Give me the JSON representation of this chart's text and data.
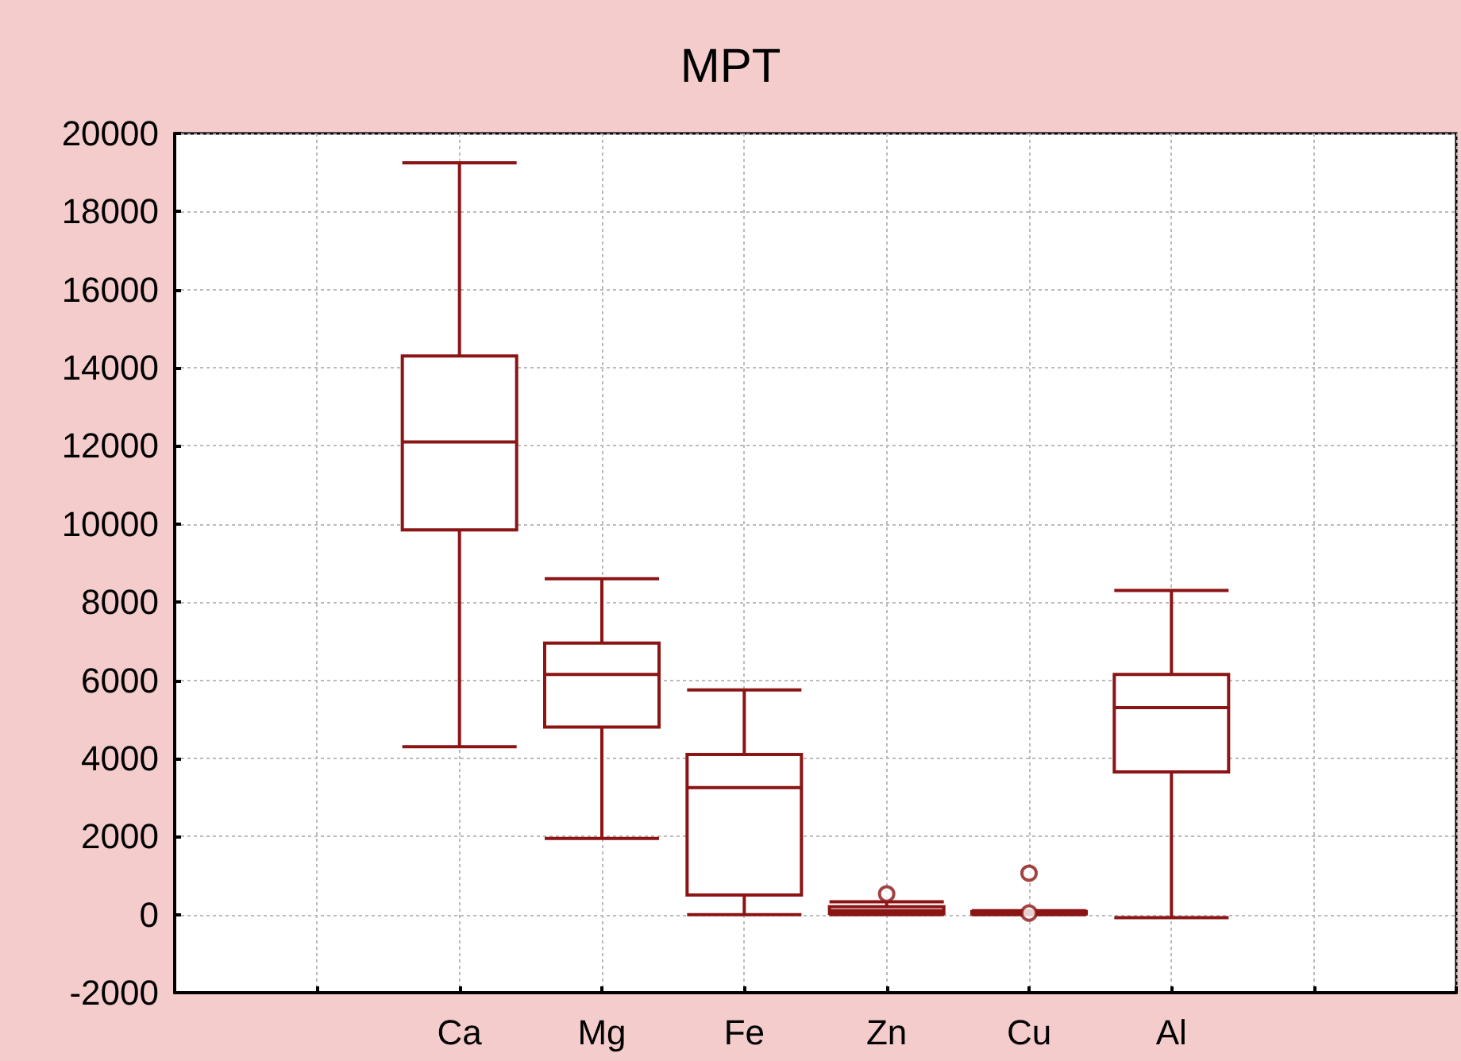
{
  "chart_data": {
    "type": "box",
    "title": "MPT",
    "categories": [
      null,
      null,
      "Ca",
      "Mg",
      "Fe",
      "Zn",
      "Cu",
      "Al",
      null,
      null
    ],
    "series": [
      {
        "color": "#8b1414",
        "boxes": [
          null,
          null,
          {
            "low": 4300,
            "q1": 9850,
            "median": 12100,
            "q3": 14300,
            "high": 19250
          },
          {
            "low": 1950,
            "q1": 4800,
            "median": 6150,
            "q3": 6950,
            "high": 8600
          },
          {
            "low": 0,
            "q1": 500,
            "median": 3250,
            "q3": 4100,
            "high": 5750
          },
          {
            "low": 0,
            "q1": 30,
            "median": 100,
            "q3": 200,
            "high": 330,
            "outliers": [
              530
            ]
          },
          {
            "low": 0,
            "q1": 20,
            "median": 50,
            "q3": 80,
            "high": 100,
            "outliers": [
              1060,
              40
            ]
          },
          {
            "low": -80,
            "q1": 3650,
            "median": 5300,
            "q3": 6150,
            "high": 8300
          },
          null,
          null
        ]
      }
    ],
    "ylim": [
      -2000,
      20000
    ],
    "yticks": [
      -2000,
      0,
      2000,
      4000,
      6000,
      8000,
      10000,
      12000,
      14000,
      16000,
      18000,
      20000
    ],
    "grid": true
  }
}
